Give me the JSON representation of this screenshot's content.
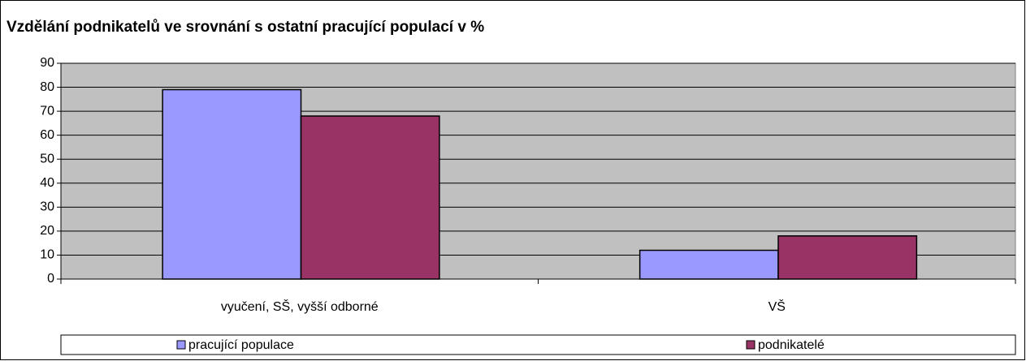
{
  "chart_data": {
    "type": "bar",
    "title": "Vzdělání podnikatelů ve srovnání s ostatní pracující populací v %",
    "categories": [
      "vyučení, SŠ, vyšší odborné",
      "VŠ"
    ],
    "series": [
      {
        "name": "pracující populace",
        "color": "#9999ff",
        "values": [
          79,
          12
        ]
      },
      {
        "name": "podnikatelé",
        "color": "#993366",
        "values": [
          68,
          18
        ]
      }
    ],
    "ylim": [
      0,
      90
    ],
    "yticks": [
      0,
      10,
      20,
      30,
      40,
      50,
      60,
      70,
      80,
      90
    ],
    "grid": true,
    "legend": "bottom"
  }
}
